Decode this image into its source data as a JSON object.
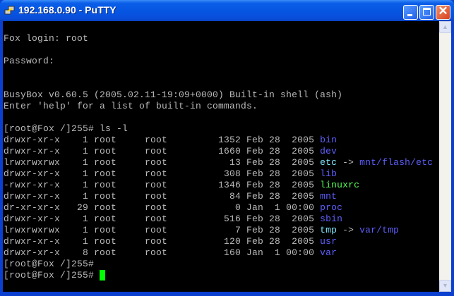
{
  "window": {
    "title": "192.168.0.90 - PuTTY",
    "app_icon": "putty-icon"
  },
  "colors": {
    "text": "#bbbbbb",
    "directory": "#5f5fff",
    "symlink": "#7fe8ff",
    "executable": "#55ff55",
    "cursor": "#00ff00"
  },
  "terminal": {
    "lines": [
      "",
      "Fox login: root",
      "",
      "Password:",
      "",
      "",
      "BusyBox v0.60.5 (2005.02.11-19:09+0000) Built-in shell (ash)",
      "Enter 'help' for a list of built-in commands.",
      "",
      "[root@Fox /]255# ls -l"
    ],
    "listing": [
      {
        "meta": "drwxr-xr-x    1 root     root         1352 Feb 28  2005 ",
        "name": "bin",
        "type": "dir"
      },
      {
        "meta": "drwxr-xr-x    1 root     root         1660 Feb 28  2005 ",
        "name": "dev",
        "type": "dir"
      },
      {
        "meta": "lrwxrwxrwx    1 root     root           13 Feb 28  2005 ",
        "name": "etc",
        "type": "link",
        "target": "mnt/flash/etc"
      },
      {
        "meta": "drwxr-xr-x    1 root     root          308 Feb 28  2005 ",
        "name": "lib",
        "type": "dir"
      },
      {
        "meta": "-rwxr-xr-x    1 root     root         1346 Feb 28  2005 ",
        "name": "linuxrc",
        "type": "exec"
      },
      {
        "meta": "drwxr-xr-x    1 root     root           84 Feb 28  2005 ",
        "name": "mnt",
        "type": "dir"
      },
      {
        "meta": "dr-xr-xr-x   29 root     root            0 Jan  1 00:00 ",
        "name": "proc",
        "type": "dir"
      },
      {
        "meta": "drwxr-xr-x    1 root     root          516 Feb 28  2005 ",
        "name": "sbin",
        "type": "dir"
      },
      {
        "meta": "lrwxrwxrwx    1 root     root            7 Feb 28  2005 ",
        "name": "tmp",
        "type": "link",
        "target": "var/tmp"
      },
      {
        "meta": "drwxr-xr-x    1 root     root          120 Feb 28  2005 ",
        "name": "usr",
        "type": "dir"
      },
      {
        "meta": "drwxr-xr-x    8 root     root          160 Jan  1 00:00 ",
        "name": "var",
        "type": "dir"
      }
    ],
    "link_arrow": " -> ",
    "prompts": [
      "[root@Fox /]255#",
      "[root@Fox /]255# "
    ]
  }
}
